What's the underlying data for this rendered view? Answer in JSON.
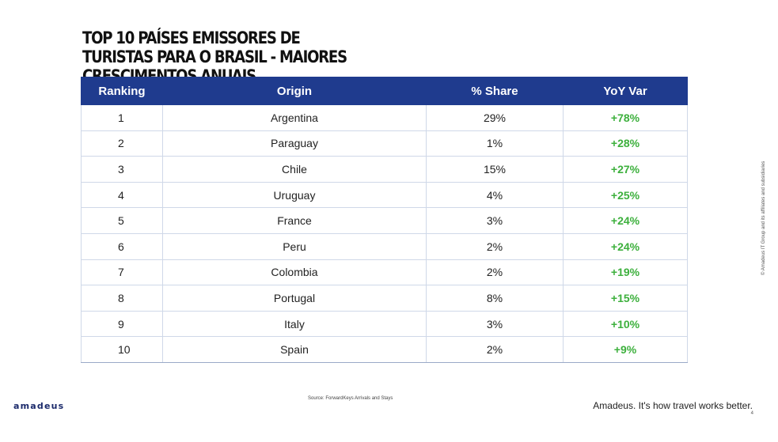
{
  "title": "TOP 10 PAÍSES EMISSORES DE TURISTAS PARA O BRASIL - MAIORES CRESCIMENTOS ANUAIS",
  "table": {
    "headers": [
      "Ranking",
      "Origin",
      "% Share",
      "YoY Var"
    ],
    "rows": [
      {
        "ranking": "1",
        "origin": "Argentina",
        "share": "29%",
        "yoy": "+78%"
      },
      {
        "ranking": "2",
        "origin": "Paraguay",
        "share": "1%",
        "yoy": "+28%"
      },
      {
        "ranking": "3",
        "origin": "Chile",
        "share": "15%",
        "yoy": "+27%"
      },
      {
        "ranking": "4",
        "origin": "Uruguay",
        "share": "4%",
        "yoy": "+25%"
      },
      {
        "ranking": "5",
        "origin": "France",
        "share": "3%",
        "yoy": "+24%"
      },
      {
        "ranking": "6",
        "origin": "Peru",
        "share": "2%",
        "yoy": "+24%"
      },
      {
        "ranking": "7",
        "origin": "Colombia",
        "share": "2%",
        "yoy": "+19%"
      },
      {
        "ranking": "8",
        "origin": "Portugal",
        "share": "8%",
        "yoy": "+15%"
      },
      {
        "ranking": "9",
        "origin": "Italy",
        "share": "3%",
        "yoy": "+10%"
      },
      {
        "ranking": "10",
        "origin": "Spain",
        "share": "2%",
        "yoy": "+9%"
      }
    ]
  },
  "footer": {
    "logo": "amadeus",
    "source": "Source: ForwardKeys Arrivals and Stays",
    "tagline": "Amadeus. It's how travel works better.",
    "page_number": "4",
    "copyright": "© Amadeus IT Group and its affiliates and subsidiaries"
  },
  "colors": {
    "header_bg": "#1f3b8e",
    "positive_var": "#3db03d",
    "brand": "#1b2a6b"
  }
}
